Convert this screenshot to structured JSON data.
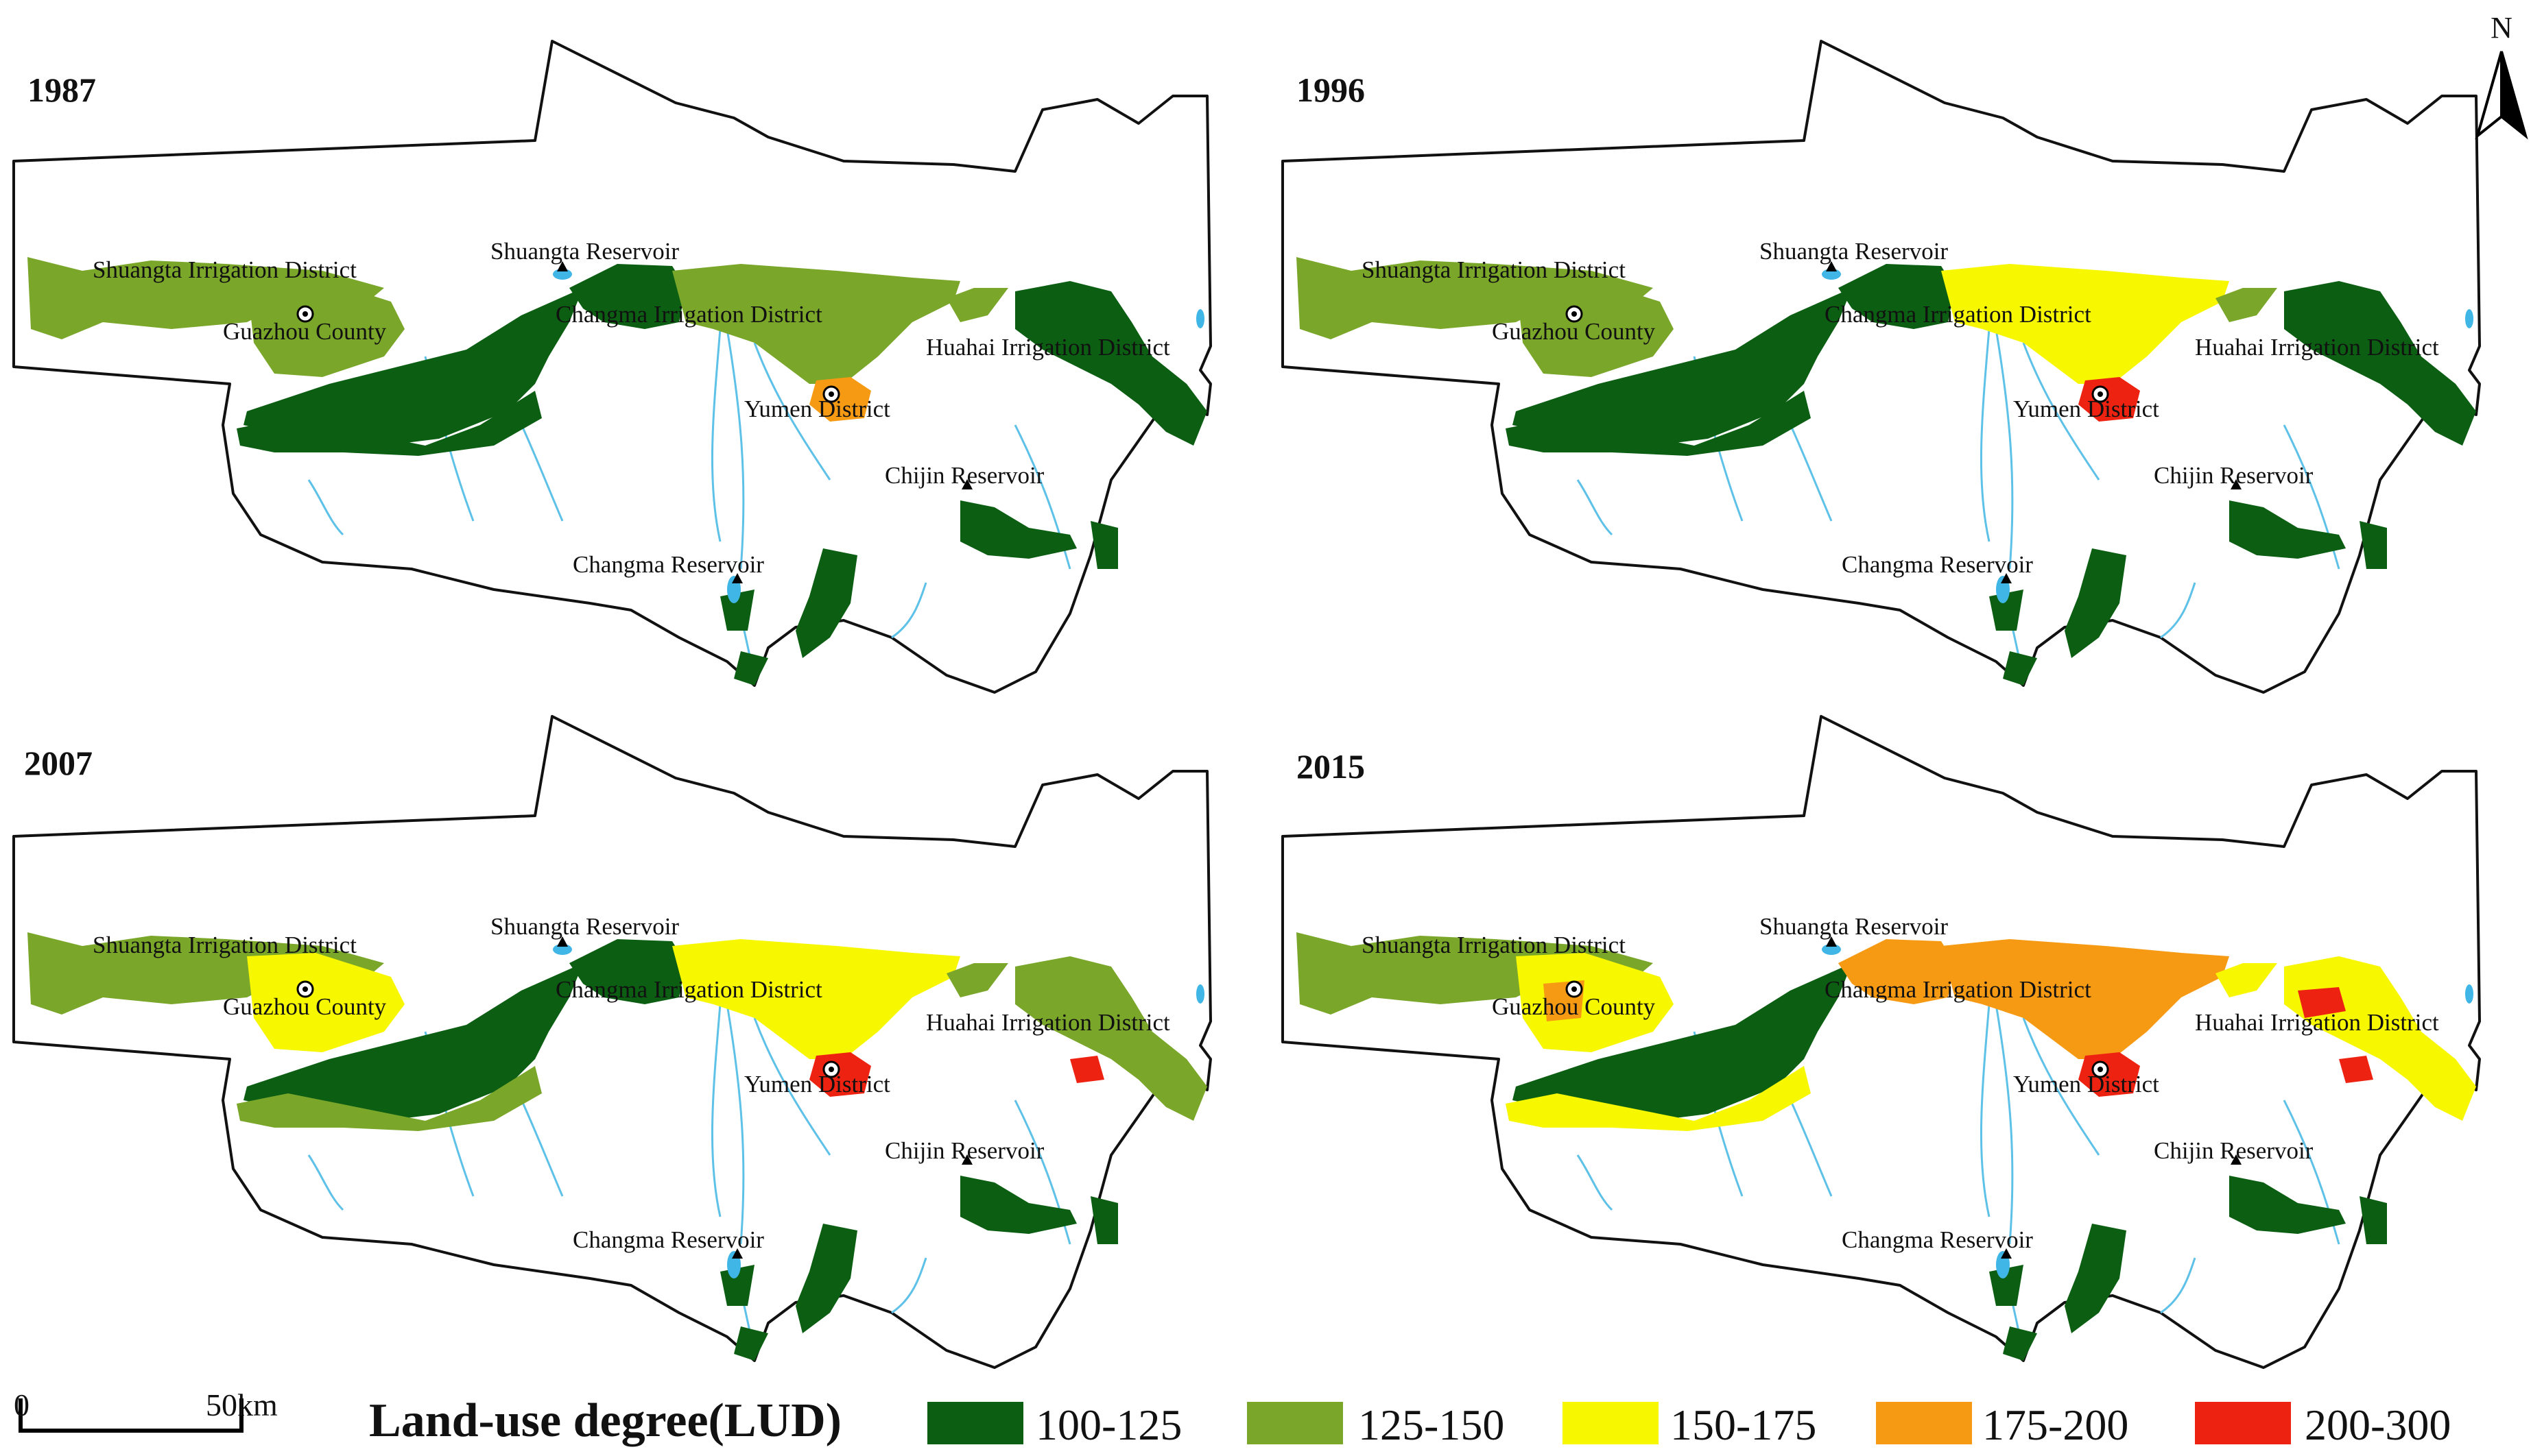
{
  "years": [
    "1987",
    "1996",
    "2007",
    "2015"
  ],
  "places": {
    "shuangta_irrigation": "Shuangta Irrigation District",
    "guazhou": "Guazhou County",
    "shuangta_reservoir": "Shuangta Reservoir",
    "changma_irrigation": "Changma Irrigation District",
    "huahai_irrigation": "Huahai Irrigation District",
    "yumen": "Yumen District",
    "chijin_reservoir": "Chijin Reservoir",
    "changma_reservoir": "Changma Reservoir"
  },
  "legend": {
    "title": "Land-use degree(LUD)",
    "classes": [
      {
        "label": "100-125",
        "color": "#0b5e12"
      },
      {
        "label": "125-150",
        "color": "#7aa62a"
      },
      {
        "label": "150-175",
        "color": "#f7f700"
      },
      {
        "label": "175-200",
        "color": "#f79a13"
      },
      {
        "label": "200-300",
        "color": "#ee2211"
      }
    ]
  },
  "scale_bar": {
    "start": "0",
    "end": "50km"
  },
  "north_arrow": "N",
  "water_color": "#3fb6e6"
}
